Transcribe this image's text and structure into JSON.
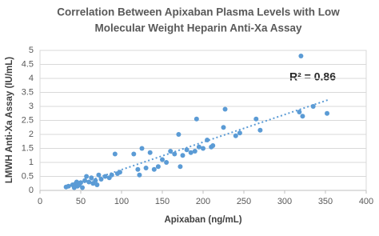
{
  "chart_data": {
    "type": "scatter",
    "title": [
      "Correlation Between Apixaban Plasma Levels with Low",
      "Molecular Weight Heparin Anti-Xa Assay"
    ],
    "xlabel": "Apixaban (ng/mL)",
    "ylabel": "LMWH Anti-Xa Assay (IU/mL)",
    "annotation": "R² = 0.86",
    "color": "#5b9bd5",
    "grid": true,
    "xlim": [
      0,
      400
    ],
    "xticks": [
      0,
      50,
      100,
      150,
      200,
      250,
      300,
      350,
      400
    ],
    "ylim": [
      0,
      5
    ],
    "yticks": [
      0,
      0.5,
      1,
      1.5,
      2,
      2.5,
      3,
      3.5,
      4,
      4.5,
      5
    ],
    "x": [
      32,
      35,
      40,
      42,
      44,
      45,
      46,
      48,
      50,
      52,
      55,
      57,
      60,
      63,
      65,
      68,
      70,
      72,
      75,
      80,
      85,
      88,
      92,
      95,
      98,
      115,
      120,
      122,
      125,
      130,
      135,
      140,
      145,
      150,
      155,
      160,
      165,
      170,
      172,
      175,
      180,
      185,
      190,
      192,
      195,
      200,
      205,
      210,
      212,
      225,
      227,
      240,
      245,
      265,
      270,
      318,
      320,
      322,
      335,
      352
    ],
    "y": [
      0.12,
      0.15,
      0.2,
      0.1,
      0.25,
      0.3,
      0.15,
      0.2,
      0.28,
      0.1,
      0.35,
      0.5,
      0.3,
      0.45,
      0.25,
      0.35,
      0.2,
      0.55,
      0.4,
      0.5,
      0.45,
      0.55,
      1.3,
      0.6,
      0.65,
      1.3,
      0.75,
      0.55,
      1.5,
      0.8,
      1.35,
      0.75,
      0.85,
      1.1,
      1.0,
      1.4,
      1.3,
      2.0,
      0.85,
      1.25,
      1.45,
      1.35,
      1.4,
      2.55,
      1.55,
      1.5,
      1.8,
      1.55,
      1.6,
      2.25,
      2.9,
      1.95,
      2.05,
      2.55,
      2.15,
      2.8,
      4.8,
      2.65,
      3.0,
      2.75
    ],
    "trendline": {
      "x": [
        35,
        355
      ],
      "y": [
        0.1,
        3.25
      ]
    }
  }
}
